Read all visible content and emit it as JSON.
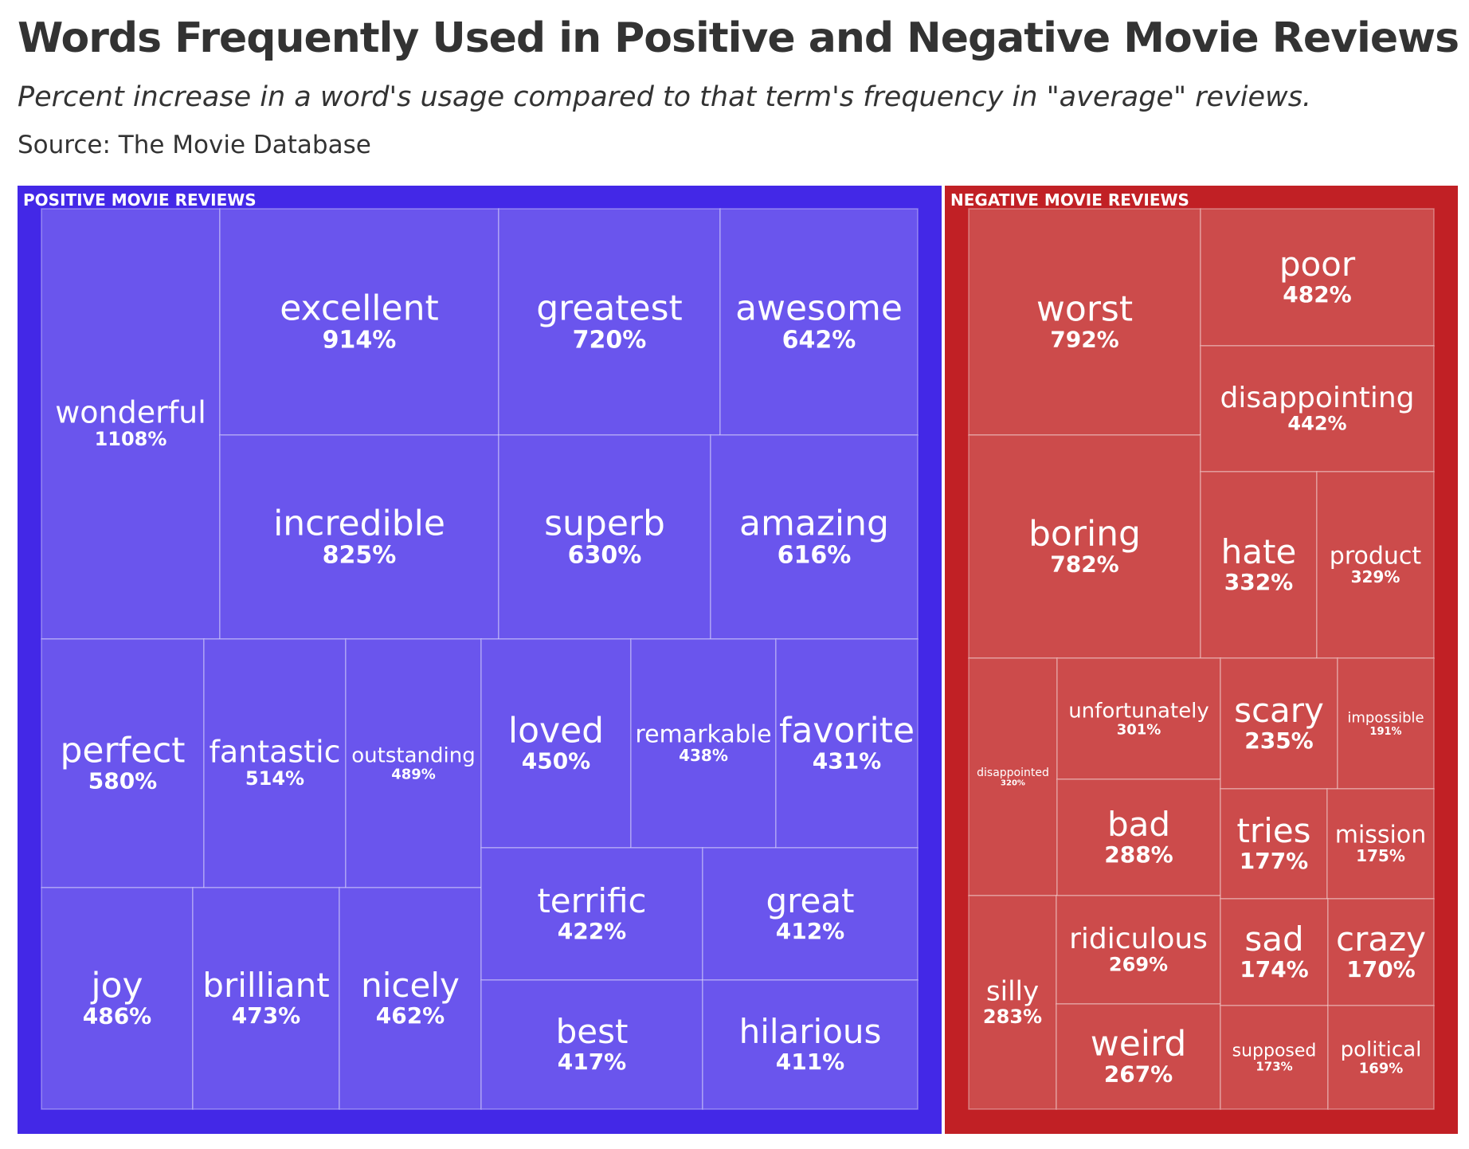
{
  "chart_data": {
    "type": "treemap",
    "title": "Words Frequently Used in Positive and Negative Movie Reviews",
    "subtitle": "Percent increase in a word's usage compared to that term's frequency in \"average\" reviews.",
    "source": "Source: The Movie Database",
    "colors": {
      "positive_frame": "#4328e7",
      "positive_tile": "#6a55ed",
      "negative_frame": "#c12025",
      "negative_tile": "#cc4b4b",
      "divider": "#ffffff"
    },
    "groups": [
      {
        "name": "POSITIVE MOVIE REVIEWS",
        "items": [
          {
            "word": "wonderful",
            "value": 1108,
            "label": "1108%"
          },
          {
            "word": "excellent",
            "value": 914,
            "label": "914%"
          },
          {
            "word": "incredible",
            "value": 825,
            "label": "825%"
          },
          {
            "word": "greatest",
            "value": 720,
            "label": "720%"
          },
          {
            "word": "awesome",
            "value": 642,
            "label": "642%"
          },
          {
            "word": "superb",
            "value": 630,
            "label": "630%"
          },
          {
            "word": "amazing",
            "value": 616,
            "label": "616%"
          },
          {
            "word": "perfect",
            "value": 580,
            "label": "580%"
          },
          {
            "word": "fantastic",
            "value": 514,
            "label": "514%"
          },
          {
            "word": "outstanding",
            "value": 489,
            "label": "489%"
          },
          {
            "word": "joy",
            "value": 486,
            "label": "486%"
          },
          {
            "word": "brilliant",
            "value": 473,
            "label": "473%"
          },
          {
            "word": "nicely",
            "value": 462,
            "label": "462%"
          },
          {
            "word": "loved",
            "value": 450,
            "label": "450%"
          },
          {
            "word": "remarkable",
            "value": 438,
            "label": "438%"
          },
          {
            "word": "favorite",
            "value": 431,
            "label": "431%"
          },
          {
            "word": "terrific",
            "value": 422,
            "label": "422%"
          },
          {
            "word": "best",
            "value": 417,
            "label": "417%"
          },
          {
            "word": "great",
            "value": 412,
            "label": "412%"
          },
          {
            "word": "hilarious",
            "value": 411,
            "label": "411%"
          }
        ]
      },
      {
        "name": "NEGATIVE MOVIE REVIEWS",
        "items": [
          {
            "word": "worst",
            "value": 792,
            "label": "792%"
          },
          {
            "word": "boring",
            "value": 782,
            "label": "782%"
          },
          {
            "word": "poor",
            "value": 482,
            "label": "482%"
          },
          {
            "word": "disappointing",
            "value": 442,
            "label": "442%"
          },
          {
            "word": "hate",
            "value": 332,
            "label": "332%"
          },
          {
            "word": "product",
            "value": 329,
            "label": "329%"
          },
          {
            "word": "disappointed",
            "value": 320,
            "label": "320%"
          },
          {
            "word": "unfortunately",
            "value": 301,
            "label": "301%"
          },
          {
            "word": "bad",
            "value": 288,
            "label": "288%"
          },
          {
            "word": "silly",
            "value": 283,
            "label": "283%"
          },
          {
            "word": "ridiculous",
            "value": 269,
            "label": "269%"
          },
          {
            "word": "weird",
            "value": 267,
            "label": "267%"
          },
          {
            "word": "scary",
            "value": 235,
            "label": "235%"
          },
          {
            "word": "impossible",
            "value": 191,
            "label": "191%"
          },
          {
            "word": "tries",
            "value": 177,
            "label": "177%"
          },
          {
            "word": "mission",
            "value": 175,
            "label": "175%"
          },
          {
            "word": "sad",
            "value": 174,
            "label": "174%"
          },
          {
            "word": "supposed",
            "value": 173,
            "label": "173%"
          },
          {
            "word": "crazy",
            "value": 170,
            "label": "170%"
          },
          {
            "word": "political",
            "value": 169,
            "label": "169%"
          }
        ]
      }
    ]
  }
}
